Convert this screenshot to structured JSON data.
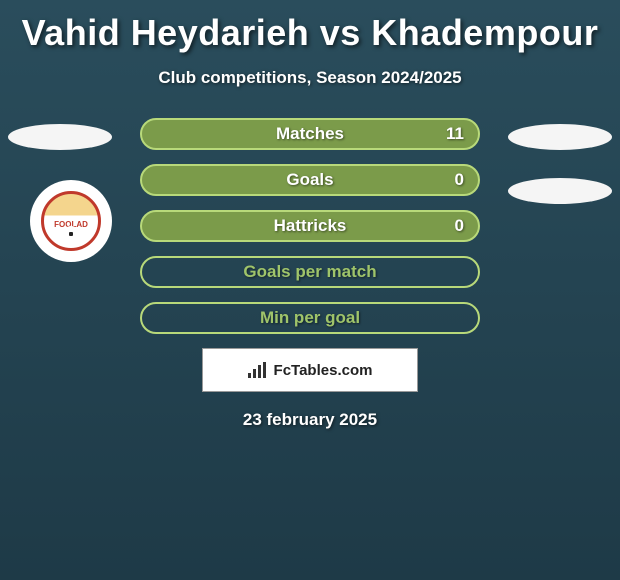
{
  "title": "Vahid Heydarieh vs Khadempour",
  "subtitle": "Club competitions, Season 2024/2025",
  "club_logo_text": "FOOLAD",
  "stats": {
    "rows": [
      {
        "label": "Matches",
        "value": "11",
        "fill": "#7b9b4a",
        "border": "#b8d97a",
        "text": "#ffffff"
      },
      {
        "label": "Goals",
        "value": "0",
        "fill": "#7b9b4a",
        "border": "#b8d97a",
        "text": "#ffffff"
      },
      {
        "label": "Hattricks",
        "value": "0",
        "fill": "#7b9b4a",
        "border": "#b8d97a",
        "text": "#ffffff"
      },
      {
        "label": "Goals per match",
        "value": "",
        "fill": "transparent",
        "border": "#b8d97a",
        "text": "#9fc46a"
      },
      {
        "label": "Min per goal",
        "value": "",
        "fill": "transparent",
        "border": "#b8d97a",
        "text": "#9fc46a"
      }
    ]
  },
  "site_logo": "FcTables.com",
  "date": "23 february 2025",
  "colors": {
    "bg_top": "#2a4d5c",
    "bg_bottom": "#1e3a47",
    "ellipse": "#f5f5f5"
  }
}
